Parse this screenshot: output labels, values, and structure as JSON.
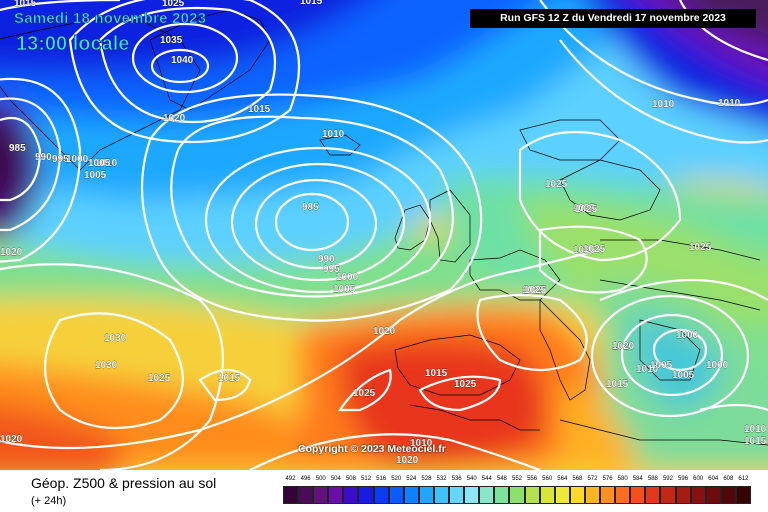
{
  "header": {
    "date_line": "Samedi 18 novembre 2023",
    "time_line": "13:00 locale",
    "run_info": "Run GFS 12 Z du Vendredi 17 novembre 2023"
  },
  "map": {
    "copyright": "Copyright © 2023 Meteociel.fr",
    "isobar_labels": [
      "1015",
      "1025",
      "1015",
      "1035",
      "1040",
      "1015",
      "1020",
      "1010",
      "985",
      "990",
      "995",
      "1000",
      "1010",
      "1005",
      "985",
      "990",
      "995",
      "1000",
      "1005",
      "1020",
      "1025",
      "1015",
      "1030",
      "1030",
      "1025",
      "1015",
      "1025",
      "1025",
      "1015",
      "1020",
      "1025",
      "1025",
      "1025",
      "1025",
      "1025",
      "1000",
      "1020",
      "1005",
      "1010",
      "1000",
      "1005",
      "1010",
      "1015",
      "1010",
      "1010",
      "1010",
      "1020",
      "1020",
      "1020",
      "1005",
      "1025",
      "1025"
    ],
    "colors": {
      "water_dark": "#4b1b5c",
      "low_blue": "#0a1fd8",
      "high_red": "#e8321b",
      "isobar": "#ffffff"
    }
  },
  "legend": {
    "title": "Géop. Z500 & pression au sol",
    "subtitle": "(+ 24h)",
    "scale_values": [
      "492",
      "496",
      "500",
      "504",
      "508",
      "512",
      "516",
      "520",
      "524",
      "528",
      "532",
      "536",
      "540",
      "544",
      "548",
      "552",
      "556",
      "560",
      "564",
      "568",
      "572",
      "576",
      "580",
      "584",
      "588",
      "592",
      "596",
      "600",
      "604",
      "608",
      "612"
    ],
    "scale_colors": [
      "#320438",
      "#4b0a5a",
      "#62127a",
      "#6a0dad",
      "#3a0ccc",
      "#1a1ae0",
      "#0b3bf0",
      "#0a5cff",
      "#0d82ff",
      "#1fa6ff",
      "#3cc2ff",
      "#62d6ff",
      "#8ae6f8",
      "#86e8c8",
      "#7be49a",
      "#8ee06c",
      "#b4e24c",
      "#d8e63c",
      "#f0e838",
      "#ffd92a",
      "#ffb422",
      "#ff9020",
      "#ff6e1e",
      "#f5501a",
      "#e23a18",
      "#c62616",
      "#a81a14",
      "#8a0f10",
      "#6e0a0c",
      "#520608",
      "#360404"
    ]
  }
}
